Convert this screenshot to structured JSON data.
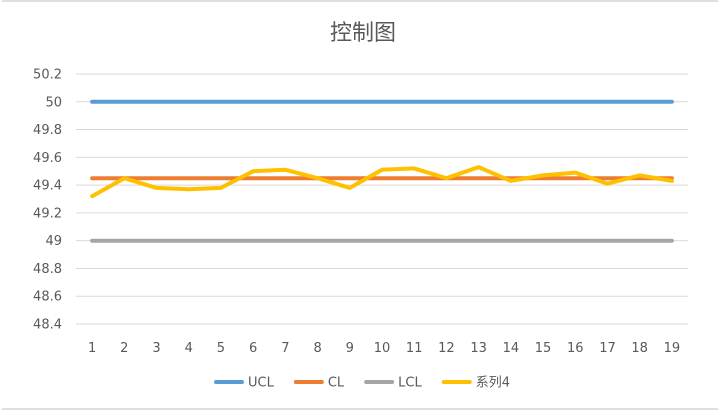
{
  "chart_data": {
    "type": "line",
    "title": "控制图",
    "xlabel": "",
    "ylabel": "",
    "categories": [
      "1",
      "2",
      "3",
      "4",
      "5",
      "6",
      "7",
      "8",
      "9",
      "10",
      "11",
      "12",
      "13",
      "14",
      "15",
      "16",
      "17",
      "18",
      "19"
    ],
    "ylim": [
      48.4,
      50.2
    ],
    "yticks": [
      "50.2",
      "50",
      "49.8",
      "49.6",
      "49.4",
      "49.2",
      "49",
      "48.8",
      "48.6",
      "48.4"
    ],
    "grid": true,
    "legend_position": "bottom",
    "series": [
      {
        "name": "UCL",
        "color": "#5b9bd5",
        "values": [
          50,
          50,
          50,
          50,
          50,
          50,
          50,
          50,
          50,
          50,
          50,
          50,
          50,
          50,
          50,
          50,
          50,
          50,
          50
        ]
      },
      {
        "name": "CL",
        "color": "#ed7d31",
        "values": [
          49.45,
          49.45,
          49.45,
          49.45,
          49.45,
          49.45,
          49.45,
          49.45,
          49.45,
          49.45,
          49.45,
          49.45,
          49.45,
          49.45,
          49.45,
          49.45,
          49.45,
          49.45,
          49.45
        ]
      },
      {
        "name": "LCL",
        "color": "#a5a5a5",
        "values": [
          49,
          49,
          49,
          49,
          49,
          49,
          49,
          49,
          49,
          49,
          49,
          49,
          49,
          49,
          49,
          49,
          49,
          49,
          49
        ]
      },
      {
        "name": "系列4",
        "color": "#ffc000",
        "values": [
          49.32,
          49.45,
          49.38,
          49.37,
          49.38,
          49.5,
          49.51,
          49.45,
          49.38,
          49.51,
          49.52,
          49.45,
          49.53,
          49.43,
          49.47,
          49.49,
          49.41,
          49.47,
          49.43
        ]
      }
    ]
  }
}
